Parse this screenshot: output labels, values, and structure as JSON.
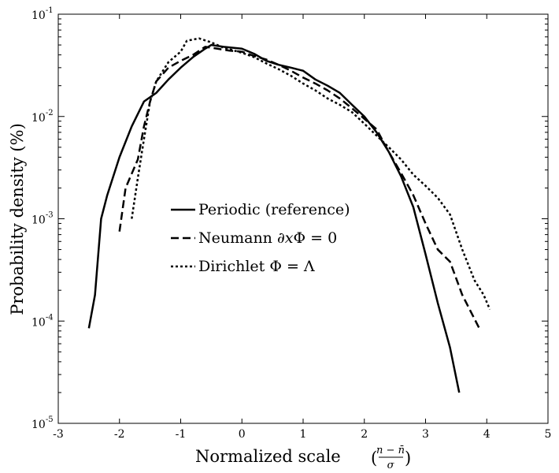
{
  "chart_data": {
    "type": "line",
    "xlabel": "Normalized scale",
    "xlabel_fraction": {
      "numerator": "n − n̄",
      "denominator": "σ"
    },
    "ylabel": "Probability density (%)",
    "xlim": [
      -3,
      5
    ],
    "ylim": [
      1e-05,
      0.1
    ],
    "yscale": "log",
    "grid": false,
    "legend_position": "center-left",
    "x_ticks": [
      "-3",
      "-2",
      "-1",
      "0",
      "1",
      "2",
      "3",
      "4",
      "5"
    ],
    "y_ticks": [
      {
        "base": "10",
        "exp": "-5",
        "value": 1e-05
      },
      {
        "base": "10",
        "exp": "-4",
        "value": 0.0001
      },
      {
        "base": "10",
        "exp": "-3",
        "value": 0.001
      },
      {
        "base": "10",
        "exp": "-2",
        "value": 0.01
      },
      {
        "base": "10",
        "exp": "-1",
        "value": 0.1
      }
    ],
    "series": [
      {
        "name": "Periodic (reference)",
        "style": "solid",
        "color": "#000000",
        "points": [
          [
            -2.5,
            8.5e-05
          ],
          [
            -2.4,
            0.00018
          ],
          [
            -2.3,
            0.001
          ],
          [
            -2.2,
            0.0017
          ],
          [
            -2.0,
            0.004
          ],
          [
            -1.8,
            0.008
          ],
          [
            -1.6,
            0.014
          ],
          [
            -1.4,
            0.017
          ],
          [
            -1.2,
            0.023
          ],
          [
            -1.0,
            0.03
          ],
          [
            -0.8,
            0.038
          ],
          [
            -0.6,
            0.046
          ],
          [
            -0.5,
            0.05
          ],
          [
            -0.3,
            0.048
          ],
          [
            0.0,
            0.046
          ],
          [
            0.2,
            0.041
          ],
          [
            0.4,
            0.035
          ],
          [
            0.6,
            0.032
          ],
          [
            0.8,
            0.03
          ],
          [
            1.0,
            0.028
          ],
          [
            1.2,
            0.023
          ],
          [
            1.4,
            0.02
          ],
          [
            1.6,
            0.017
          ],
          [
            1.8,
            0.013
          ],
          [
            2.0,
            0.01
          ],
          [
            2.2,
            0.007
          ],
          [
            2.4,
            0.0045
          ],
          [
            2.6,
            0.0026
          ],
          [
            2.8,
            0.0013
          ],
          [
            3.0,
            0.00045
          ],
          [
            3.2,
            0.00015
          ],
          [
            3.4,
            5.5e-05
          ],
          [
            3.55,
            2e-05
          ]
        ]
      },
      {
        "name": "Neumann ∂xΦ = 0",
        "style": "dashed",
        "color": "#000000",
        "points": [
          [
            -2.0,
            0.00075
          ],
          [
            -1.9,
            0.002
          ],
          [
            -1.7,
            0.0038
          ],
          [
            -1.6,
            0.008
          ],
          [
            -1.5,
            0.014
          ],
          [
            -1.4,
            0.022
          ],
          [
            -1.2,
            0.03
          ],
          [
            -1.0,
            0.035
          ],
          [
            -0.8,
            0.04
          ],
          [
            -0.6,
            0.048
          ],
          [
            -0.4,
            0.046
          ],
          [
            -0.2,
            0.044
          ],
          [
            0.0,
            0.043
          ],
          [
            0.2,
            0.039
          ],
          [
            0.4,
            0.036
          ],
          [
            0.6,
            0.032
          ],
          [
            0.8,
            0.028
          ],
          [
            1.0,
            0.024
          ],
          [
            1.2,
            0.021
          ],
          [
            1.4,
            0.018
          ],
          [
            1.6,
            0.015
          ],
          [
            1.8,
            0.012
          ],
          [
            2.0,
            0.0095
          ],
          [
            2.2,
            0.0075
          ],
          [
            2.4,
            0.0045
          ],
          [
            2.6,
            0.0028
          ],
          [
            2.8,
            0.0017
          ],
          [
            3.0,
            0.0009
          ],
          [
            3.2,
            0.0005
          ],
          [
            3.4,
            0.00038
          ],
          [
            3.6,
            0.00018
          ],
          [
            3.9,
            8e-05
          ]
        ]
      },
      {
        "name": "Dirichlet Φ = Λ",
        "style": "dotted",
        "color": "#000000",
        "points": [
          [
            -1.8,
            0.001
          ],
          [
            -1.7,
            0.0025
          ],
          [
            -1.6,
            0.006
          ],
          [
            -1.5,
            0.014
          ],
          [
            -1.4,
            0.022
          ],
          [
            -1.2,
            0.034
          ],
          [
            -1.0,
            0.043
          ],
          [
            -0.9,
            0.055
          ],
          [
            -0.7,
            0.058
          ],
          [
            -0.5,
            0.053
          ],
          [
            -0.3,
            0.047
          ],
          [
            0.0,
            0.042
          ],
          [
            0.2,
            0.038
          ],
          [
            0.4,
            0.033
          ],
          [
            0.6,
            0.029
          ],
          [
            0.8,
            0.025
          ],
          [
            1.0,
            0.021
          ],
          [
            1.2,
            0.018
          ],
          [
            1.4,
            0.015
          ],
          [
            1.6,
            0.013
          ],
          [
            1.8,
            0.011
          ],
          [
            2.0,
            0.0085
          ],
          [
            2.2,
            0.0065
          ],
          [
            2.4,
            0.005
          ],
          [
            2.6,
            0.0038
          ],
          [
            2.8,
            0.0027
          ],
          [
            3.0,
            0.0021
          ],
          [
            3.2,
            0.0016
          ],
          [
            3.4,
            0.0011
          ],
          [
            3.6,
            0.0005
          ],
          [
            3.8,
            0.00025
          ],
          [
            3.95,
            0.00018
          ],
          [
            4.05,
            0.00013
          ]
        ]
      }
    ]
  }
}
